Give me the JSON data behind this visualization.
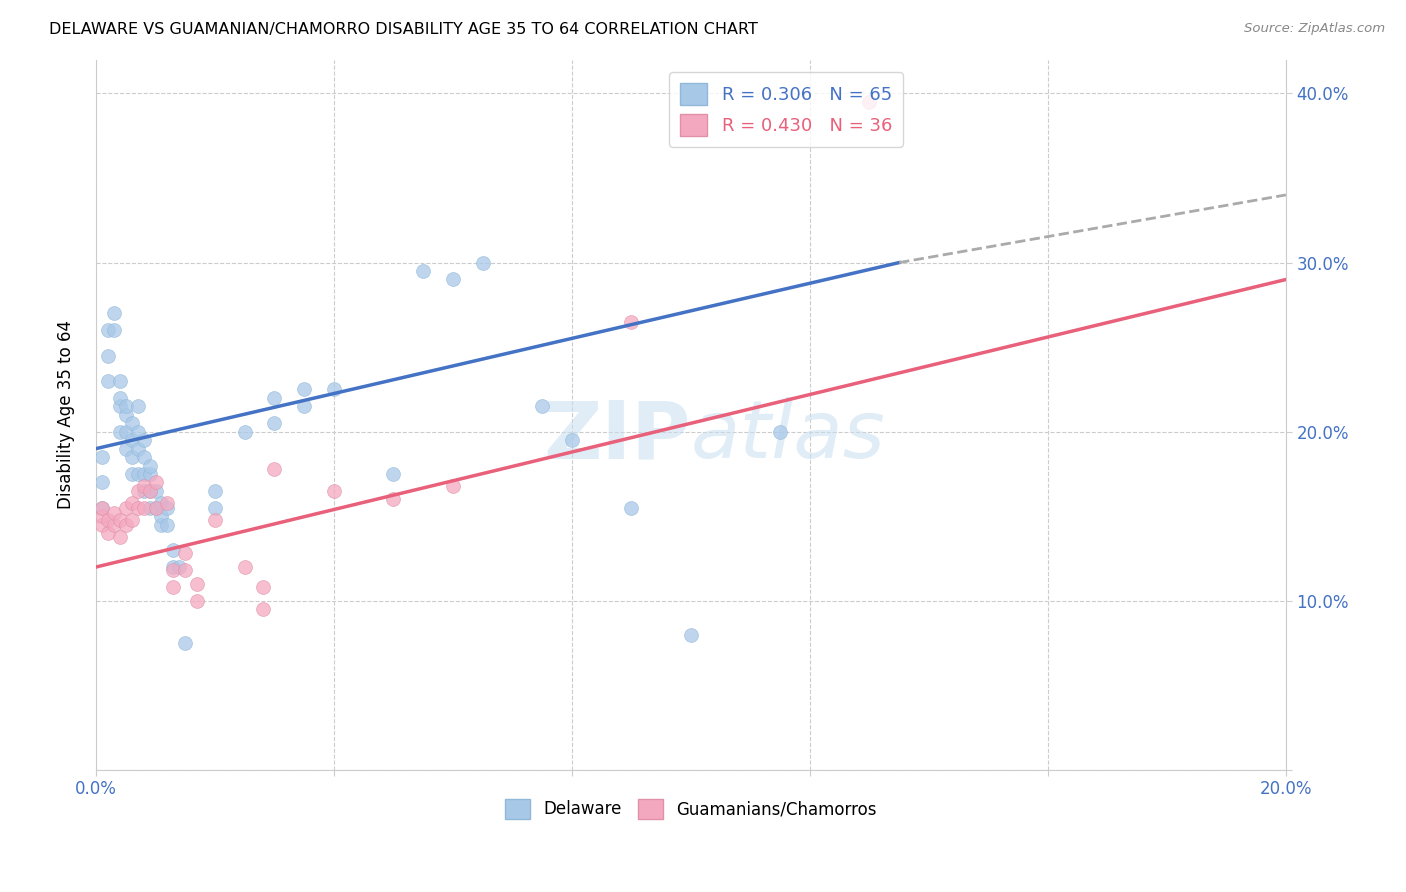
{
  "title": "DELAWARE VS GUAMANIAN/CHAMORRO DISABILITY AGE 35 TO 64 CORRELATION CHART",
  "source": "Source: ZipAtlas.com",
  "ylabel": "Disability Age 35 to 64",
  "xlim": [
    0.0,
    0.2
  ],
  "ylim": [
    0.0,
    0.42
  ],
  "delaware_color": "#a8c8e8",
  "guamanian_color": "#f4a8c0",
  "delaware_line_color": "#4472c4",
  "guamanian_line_color": "#e8607a",
  "dashed_line_color": "#aaaaaa",
  "watermark": "ZIPAtlas",
  "delaware_points": [
    [
      0.001,
      0.155
    ],
    [
      0.001,
      0.17
    ],
    [
      0.001,
      0.185
    ],
    [
      0.002,
      0.23
    ],
    [
      0.002,
      0.245
    ],
    [
      0.002,
      0.26
    ],
    [
      0.003,
      0.26
    ],
    [
      0.003,
      0.27
    ],
    [
      0.004,
      0.2
    ],
    [
      0.004,
      0.215
    ],
    [
      0.004,
      0.22
    ],
    [
      0.004,
      0.23
    ],
    [
      0.005,
      0.19
    ],
    [
      0.005,
      0.2
    ],
    [
      0.005,
      0.21
    ],
    [
      0.005,
      0.215
    ],
    [
      0.006,
      0.175
    ],
    [
      0.006,
      0.185
    ],
    [
      0.006,
      0.195
    ],
    [
      0.006,
      0.205
    ],
    [
      0.007,
      0.175
    ],
    [
      0.007,
      0.19
    ],
    [
      0.007,
      0.2
    ],
    [
      0.007,
      0.215
    ],
    [
      0.008,
      0.165
    ],
    [
      0.008,
      0.175
    ],
    [
      0.008,
      0.185
    ],
    [
      0.008,
      0.195
    ],
    [
      0.009,
      0.155
    ],
    [
      0.009,
      0.165
    ],
    [
      0.009,
      0.175
    ],
    [
      0.009,
      0.18
    ],
    [
      0.01,
      0.155
    ],
    [
      0.01,
      0.165
    ],
    [
      0.011,
      0.145
    ],
    [
      0.011,
      0.15
    ],
    [
      0.011,
      0.158
    ],
    [
      0.012,
      0.145
    ],
    [
      0.012,
      0.155
    ],
    [
      0.013,
      0.12
    ],
    [
      0.013,
      0.13
    ],
    [
      0.014,
      0.12
    ],
    [
      0.015,
      0.075
    ],
    [
      0.02,
      0.155
    ],
    [
      0.02,
      0.165
    ],
    [
      0.025,
      0.2
    ],
    [
      0.03,
      0.205
    ],
    [
      0.03,
      0.22
    ],
    [
      0.035,
      0.215
    ],
    [
      0.035,
      0.225
    ],
    [
      0.04,
      0.225
    ],
    [
      0.05,
      0.175
    ],
    [
      0.055,
      0.295
    ],
    [
      0.06,
      0.29
    ],
    [
      0.065,
      0.3
    ],
    [
      0.075,
      0.215
    ],
    [
      0.08,
      0.195
    ],
    [
      0.09,
      0.155
    ],
    [
      0.1,
      0.08
    ],
    [
      0.115,
      0.2
    ]
  ],
  "guamanian_points": [
    [
      0.001,
      0.145
    ],
    [
      0.001,
      0.15
    ],
    [
      0.001,
      0.155
    ],
    [
      0.002,
      0.14
    ],
    [
      0.002,
      0.148
    ],
    [
      0.003,
      0.145
    ],
    [
      0.003,
      0.152
    ],
    [
      0.004,
      0.138
    ],
    [
      0.004,
      0.148
    ],
    [
      0.005,
      0.145
    ],
    [
      0.005,
      0.155
    ],
    [
      0.006,
      0.148
    ],
    [
      0.006,
      0.158
    ],
    [
      0.007,
      0.155
    ],
    [
      0.007,
      0.165
    ],
    [
      0.008,
      0.155
    ],
    [
      0.008,
      0.168
    ],
    [
      0.009,
      0.165
    ],
    [
      0.01,
      0.155
    ],
    [
      0.01,
      0.17
    ],
    [
      0.012,
      0.158
    ],
    [
      0.013,
      0.108
    ],
    [
      0.013,
      0.118
    ],
    [
      0.015,
      0.118
    ],
    [
      0.015,
      0.128
    ],
    [
      0.017,
      0.1
    ],
    [
      0.017,
      0.11
    ],
    [
      0.02,
      0.148
    ],
    [
      0.025,
      0.12
    ],
    [
      0.028,
      0.095
    ],
    [
      0.028,
      0.108
    ],
    [
      0.03,
      0.178
    ],
    [
      0.04,
      0.165
    ],
    [
      0.05,
      0.16
    ],
    [
      0.06,
      0.168
    ],
    [
      0.09,
      0.265
    ],
    [
      0.13,
      0.395
    ]
  ],
  "blue_line": {
    "x0": 0.0,
    "y0": 0.19,
    "x1": 0.135,
    "y1": 0.3
  },
  "pink_line": {
    "x0": 0.0,
    "y0": 0.12,
    "x1": 0.2,
    "y1": 0.29
  },
  "dashed_line": {
    "x0": 0.135,
    "y0": 0.3,
    "x1": 0.2,
    "y1": 0.34
  }
}
